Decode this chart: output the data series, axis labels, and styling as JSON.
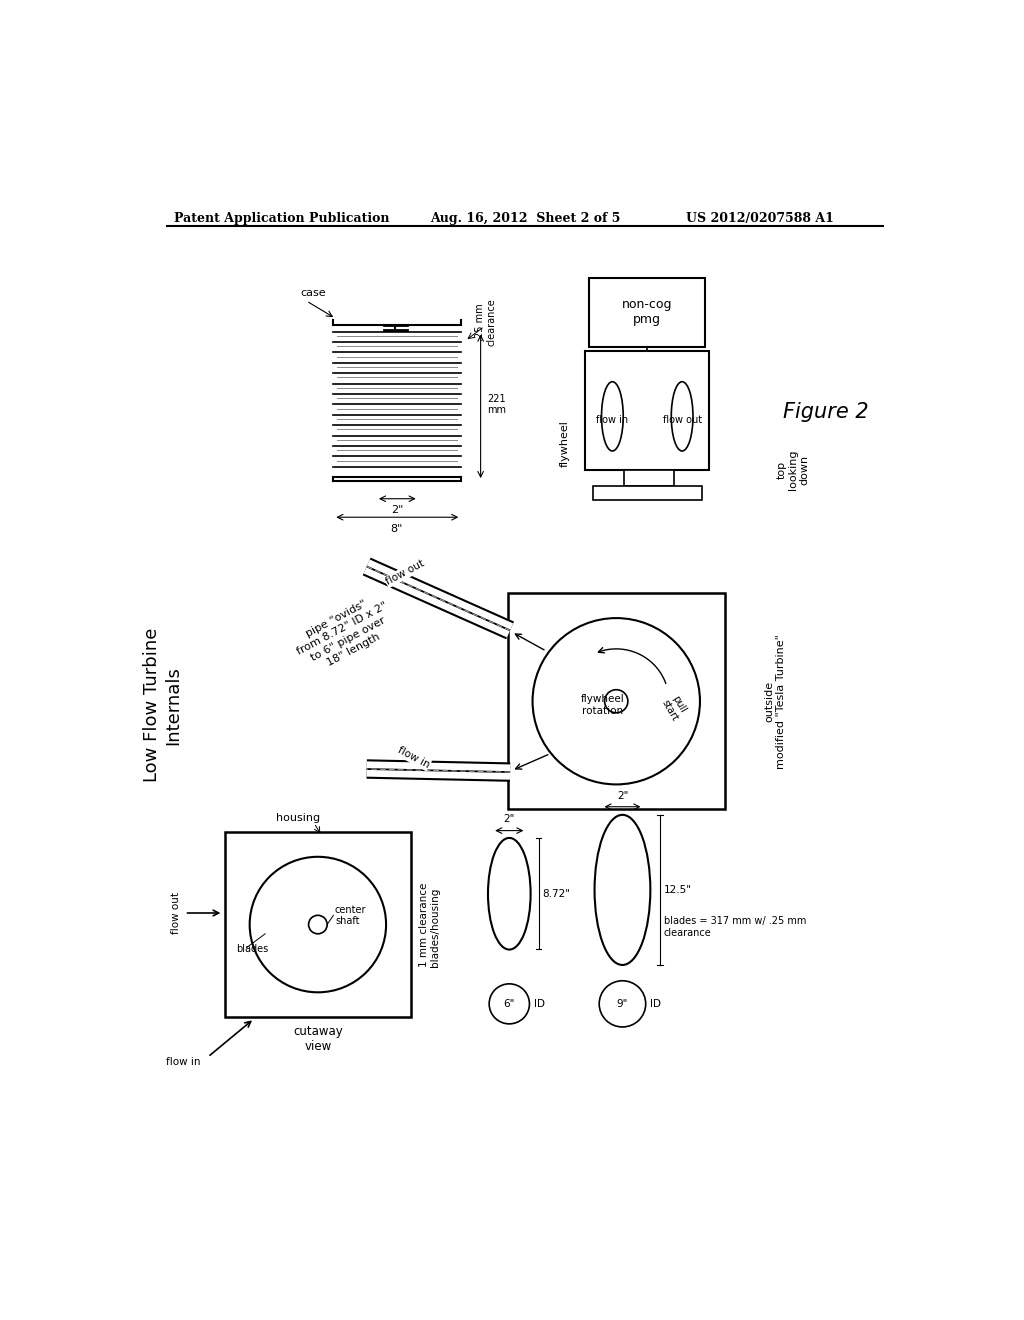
{
  "bg_color": "#ffffff",
  "header_left": "Patent Application Publication",
  "header_center": "Aug. 16, 2012  Sheet 2 of 5",
  "header_right": "US 2012/0207588 A1",
  "figure_label": "Figure 2",
  "font_color": "#000000"
}
